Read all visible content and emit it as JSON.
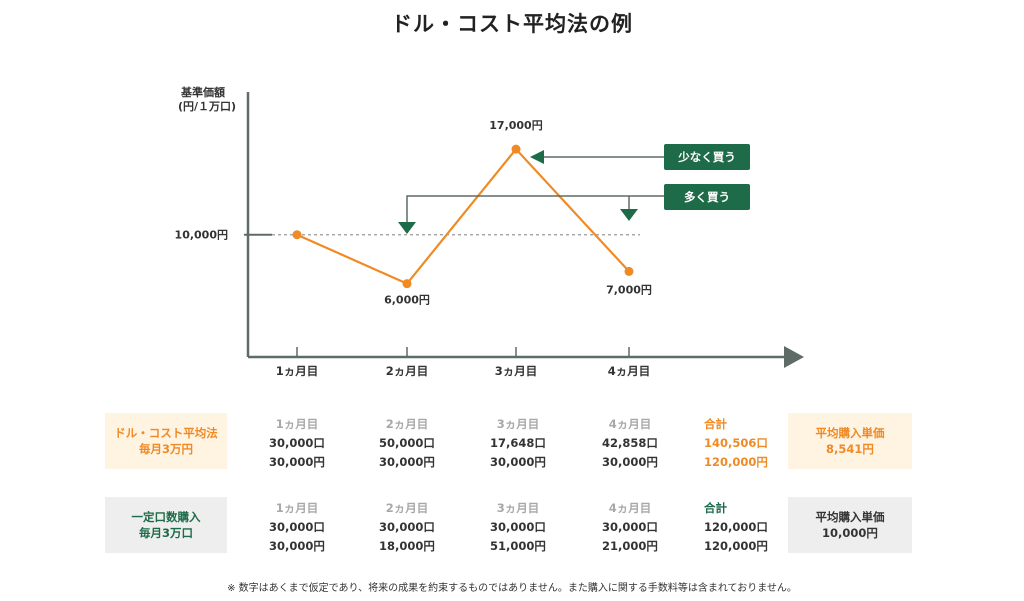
{
  "title": "ドル・コスト平均法の例",
  "colors": {
    "line": "#f08a24",
    "axis": "#5f6b66",
    "green": "#1e6b4a",
    "dcaBox": "#fff3e2",
    "fixedBox": "#eeeeee"
  },
  "chart_data": {
    "type": "line",
    "ylabel_lines": [
      "基準価額",
      "(円/１万口)"
    ],
    "categories": [
      "1ヵ月目",
      "2ヵ月目",
      "3ヵ月目",
      "4ヵ月目"
    ],
    "values": [
      10000,
      6000,
      17000,
      7000
    ],
    "point_labels": [
      "",
      "6,000円",
      "17,000円",
      "7,000円"
    ],
    "reference": {
      "value": 10000,
      "label": "10,000円",
      "style": "dotted"
    },
    "annotations": [
      {
        "label": "少なく買う",
        "targets": [
          3
        ],
        "icon": "arrow-left-icon"
      },
      {
        "label": "多く買う",
        "targets": [
          2,
          4
        ],
        "icon": "arrow-down-icon"
      }
    ],
    "ylim": [
      0,
      22000
    ]
  },
  "table": {
    "rows": [
      {
        "label_lines": [
          "ドル・コスト平均法",
          "毎月3万円"
        ],
        "months": [
          {
            "month": "1ヵ月目",
            "units": "30,000口",
            "amount": "30,000円"
          },
          {
            "month": "2ヵ月目",
            "units": "50,000口",
            "amount": "30,000円"
          },
          {
            "month": "3ヵ月目",
            "units": "17,648口",
            "amount": "30,000円"
          },
          {
            "month": "4ヵ月目",
            "units": "42,858口",
            "amount": "30,000円"
          }
        ],
        "total": {
          "label": "合計",
          "units": "140,506口",
          "amount": "120,000円"
        },
        "avg": {
          "label": "平均購入単価",
          "value": "8,541円"
        }
      },
      {
        "label_lines": [
          "一定口数購入",
          "毎月3万口"
        ],
        "months": [
          {
            "month": "1ヵ月目",
            "units": "30,000口",
            "amount": "30,000円"
          },
          {
            "month": "2ヵ月目",
            "units": "30,000口",
            "amount": "18,000円"
          },
          {
            "month": "3ヵ月目",
            "units": "30,000口",
            "amount": "51,000円"
          },
          {
            "month": "4ヵ月目",
            "units": "30,000口",
            "amount": "21,000円"
          }
        ],
        "total": {
          "label": "合計",
          "units": "120,000口",
          "amount": "120,000円"
        },
        "avg": {
          "label": "平均購入単価",
          "value": "10,000円"
        }
      }
    ]
  },
  "footnote": "※ 数字はあくまで仮定であり、将来の成果を約束するものではありません。また購入に関する手数料等は含まれておりません。"
}
